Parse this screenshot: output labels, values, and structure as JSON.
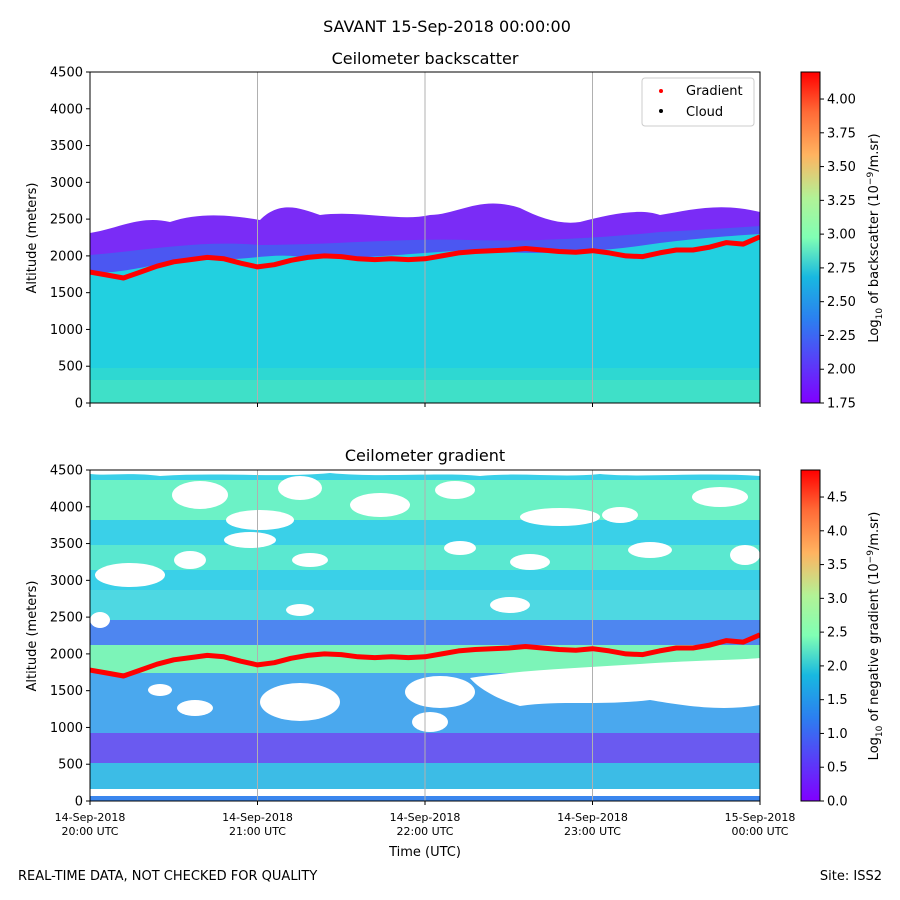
{
  "suptitle": "SAVANT 15-Sep-2018 00:00:00",
  "footer": {
    "left": "REAL-TIME DATA, NOT CHECKED FOR QUALITY",
    "right": "Site: ISS2"
  },
  "xaxis": {
    "label": "Time (UTC)",
    "ticks": [
      {
        "date": "14-Sep-2018",
        "time": "20:00 UTC"
      },
      {
        "date": "14-Sep-2018",
        "time": "21:00 UTC"
      },
      {
        "date": "14-Sep-2018",
        "time": "22:00 UTC"
      },
      {
        "date": "14-Sep-2018",
        "time": "23:00 UTC"
      },
      {
        "date": "15-Sep-2018",
        "time": "00:00 UTC"
      }
    ]
  },
  "legend": {
    "items": [
      {
        "label": "Gradient",
        "color": "#ff0000"
      },
      {
        "label": "Cloud",
        "color": "#000000"
      }
    ],
    "placement": "top-right"
  },
  "chart_data": [
    {
      "type": "heatmap",
      "title": "Ceilometer backscatter",
      "ylabel": "Altitude (meters)",
      "ylim": [
        0,
        4500
      ],
      "yticks": [
        "0",
        "500",
        "1000",
        "1500",
        "2000",
        "2500",
        "3000",
        "3500",
        "4000",
        "4500"
      ],
      "x_range": [
        "2018-09-14 20:00",
        "2018-09-15 00:00"
      ],
      "grid": "vertical",
      "colormap": "rainbow",
      "colorbar": {
        "label_parts": [
          "Log",
          "10",
          " of backscatter (10",
          "−9",
          "/m.sr)"
        ],
        "range": [
          1.75,
          4.2
        ],
        "ticks": [
          "1.75",
          "2.00",
          "2.25",
          "2.50",
          "2.75",
          "3.00",
          "3.25",
          "3.50",
          "3.75",
          "4.00"
        ]
      },
      "series": [
        {
          "name": "Gradient",
          "color": "#ff0000",
          "x_hours": [
            0,
            0.1,
            0.2,
            0.3,
            0.4,
            0.5,
            0.6,
            0.7,
            0.8,
            0.9,
            1.0,
            1.1,
            1.2,
            1.3,
            1.4,
            1.5,
            1.6,
            1.7,
            1.8,
            1.9,
            2.0,
            2.1,
            2.2,
            2.3,
            2.4,
            2.5,
            2.6,
            2.7,
            2.8,
            2.9,
            3.0,
            3.1,
            3.2,
            3.3,
            3.4,
            3.5,
            3.6,
            3.7,
            3.8,
            3.9,
            4.0
          ],
          "altitude_m": [
            1780,
            1740,
            1700,
            1780,
            1860,
            1920,
            1950,
            1980,
            1960,
            1900,
            1850,
            1880,
            1940,
            1980,
            2000,
            1990,
            1960,
            1950,
            1960,
            1950,
            1960,
            2000,
            2040,
            2060,
            2070,
            2080,
            2100,
            2080,
            2060,
            2050,
            2070,
            2040,
            2000,
            1990,
            2040,
            2080,
            2080,
            2120,
            2180,
            2160,
            2260
          ]
        }
      ]
    },
    {
      "type": "heatmap",
      "title": "Ceilometer gradient",
      "ylabel": "Altitude (meters)",
      "ylim": [
        0,
        4500
      ],
      "yticks": [
        "0",
        "500",
        "1000",
        "1500",
        "2000",
        "2500",
        "3000",
        "3500",
        "4000",
        "4500"
      ],
      "x_range": [
        "2018-09-14 20:00",
        "2018-09-15 00:00"
      ],
      "grid": "vertical",
      "colormap": "rainbow",
      "colorbar": {
        "label_parts": [
          "Log",
          "10",
          " of negative gradient (10",
          "−9",
          "/m.sr)"
        ],
        "range": [
          0,
          4.9
        ],
        "ticks": [
          "0.0",
          "0.5",
          "1.0",
          "1.5",
          "2.0",
          "2.5",
          "3.0",
          "3.5",
          "4.0",
          "4.5"
        ]
      },
      "series": [
        {
          "name": "Gradient",
          "color": "#ff0000",
          "x_hours": [
            0,
            0.1,
            0.2,
            0.3,
            0.4,
            0.5,
            0.6,
            0.7,
            0.8,
            0.9,
            1.0,
            1.1,
            1.2,
            1.3,
            1.4,
            1.5,
            1.6,
            1.7,
            1.8,
            1.9,
            2.0,
            2.1,
            2.2,
            2.3,
            2.4,
            2.5,
            2.6,
            2.7,
            2.8,
            2.9,
            3.0,
            3.1,
            3.2,
            3.3,
            3.4,
            3.5,
            3.6,
            3.7,
            3.8,
            3.9,
            4.0
          ],
          "altitude_m": [
            1780,
            1740,
            1700,
            1780,
            1860,
            1920,
            1950,
            1980,
            1960,
            1900,
            1850,
            1880,
            1940,
            1980,
            2000,
            1990,
            1960,
            1950,
            1960,
            1950,
            1960,
            2000,
            2040,
            2060,
            2070,
            2080,
            2100,
            2080,
            2060,
            2050,
            2070,
            2040,
            2000,
            1990,
            2040,
            2080,
            2080,
            2120,
            2180,
            2160,
            2260
          ]
        }
      ]
    }
  ]
}
